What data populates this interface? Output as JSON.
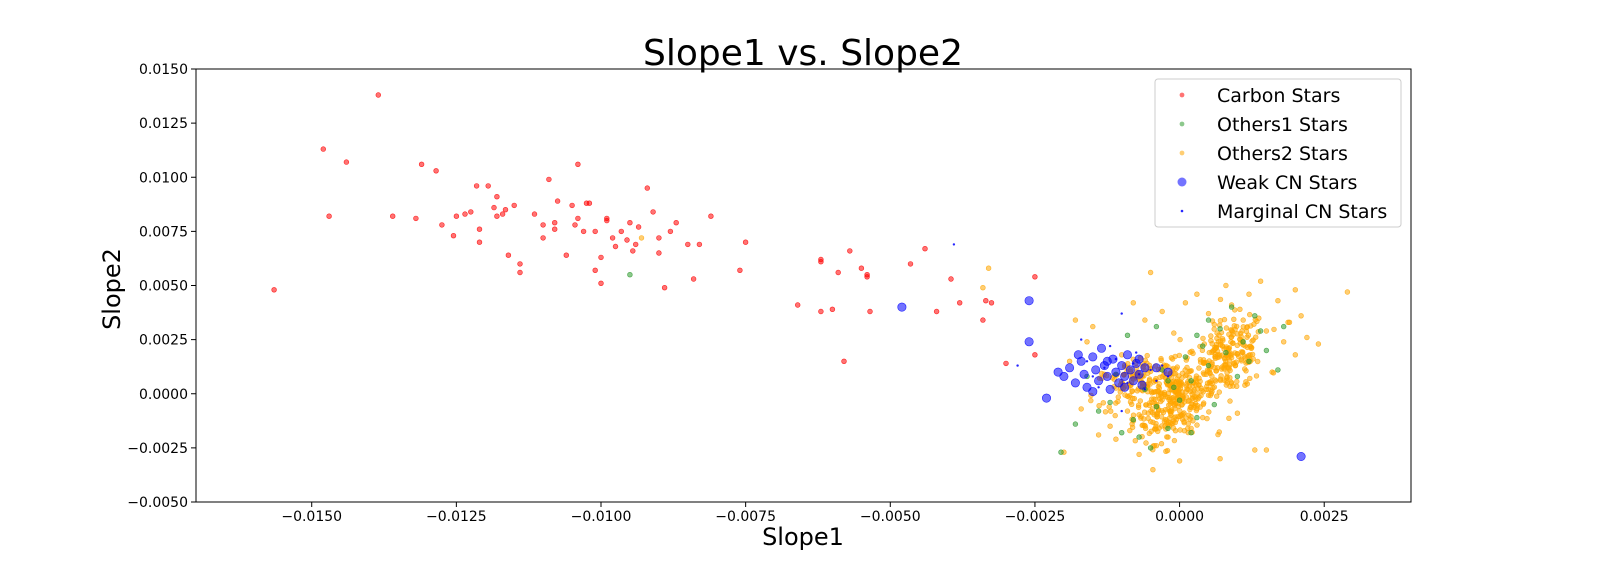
{
  "chart_data": {
    "type": "scatter",
    "title": "Slope1 vs. Slope2",
    "xlabel": "Slope1",
    "ylabel": "Slope2",
    "xlim": [
      -0.017,
      0.004
    ],
    "ylim": [
      -0.005,
      0.015
    ],
    "xticks": [
      -0.015,
      -0.0125,
      -0.01,
      -0.0075,
      -0.005,
      -0.0025,
      0.0,
      0.0025
    ],
    "xtick_labels": [
      "−0.0150",
      "−0.0125",
      "−0.0100",
      "−0.0075",
      "−0.0050",
      "−0.0025",
      "0.0000",
      "0.0025"
    ],
    "yticks": [
      -0.005,
      -0.0025,
      0.0,
      0.0025,
      0.005,
      0.0075,
      0.01,
      0.0125,
      0.015
    ],
    "ytick_labels": [
      "−0.0050",
      "−0.0025",
      "0.0000",
      "0.0025",
      "0.0050",
      "0.0075",
      "0.0100",
      "0.0125",
      "0.0150"
    ],
    "grid": false,
    "legend_position": "top-right",
    "series": [
      {
        "name": "Carbon Stars",
        "color": "#ff0000",
        "marker": "small-circle",
        "points": [
          [
            -0.01565,
            0.0048
          ],
          [
            -0.0148,
            0.0113
          ],
          [
            -0.0147,
            0.0082
          ],
          [
            -0.0144,
            0.0107
          ],
          [
            -0.01385,
            0.0138
          ],
          [
            -0.0136,
            0.0082
          ],
          [
            -0.0132,
            0.0081
          ],
          [
            -0.0131,
            0.0106
          ],
          [
            -0.01285,
            0.0103
          ],
          [
            -0.01275,
            0.0078
          ],
          [
            -0.01255,
            0.0073
          ],
          [
            -0.0125,
            0.0082
          ],
          [
            -0.01235,
            0.0083
          ],
          [
            -0.01225,
            0.0084
          ],
          [
            -0.01215,
            0.0096
          ],
          [
            -0.0121,
            0.0076
          ],
          [
            -0.0121,
            0.007
          ],
          [
            -0.01195,
            0.0096
          ],
          [
            -0.01185,
            0.0086
          ],
          [
            -0.0118,
            0.0091
          ],
          [
            -0.0118,
            0.0082
          ],
          [
            -0.0117,
            0.0083
          ],
          [
            -0.01165,
            0.0085
          ],
          [
            -0.0116,
            0.0064
          ],
          [
            -0.0115,
            0.0087
          ],
          [
            -0.0114,
            0.006
          ],
          [
            -0.0114,
            0.0056
          ],
          [
            -0.01115,
            0.0083
          ],
          [
            -0.011,
            0.0078
          ],
          [
            -0.011,
            0.0072
          ],
          [
            -0.0109,
            0.0099
          ],
          [
            -0.0108,
            0.0076
          ],
          [
            -0.0108,
            0.0079
          ],
          [
            -0.01075,
            0.0089
          ],
          [
            -0.0106,
            0.0064
          ],
          [
            -0.0105,
            0.0087
          ],
          [
            -0.01045,
            0.0078
          ],
          [
            -0.0104,
            0.0106
          ],
          [
            -0.0104,
            0.0081
          ],
          [
            -0.0103,
            0.0075
          ],
          [
            -0.01025,
            0.0088
          ],
          [
            -0.0102,
            0.0088
          ],
          [
            -0.0101,
            0.0057
          ],
          [
            -0.0101,
            0.0075
          ],
          [
            -0.01,
            0.0063
          ],
          [
            -0.01,
            0.0051
          ],
          [
            -0.0099,
            0.008
          ],
          [
            -0.0099,
            0.0081
          ],
          [
            -0.0098,
            0.0072
          ],
          [
            -0.00975,
            0.0068
          ],
          [
            -0.00965,
            0.0075
          ],
          [
            -0.00955,
            0.0071
          ],
          [
            -0.0095,
            0.0079
          ],
          [
            -0.00945,
            0.0066
          ],
          [
            -0.0094,
            0.0069
          ],
          [
            -0.00935,
            0.0077
          ],
          [
            -0.0092,
            0.0095
          ],
          [
            -0.0091,
            0.0084
          ],
          [
            -0.009,
            0.0072
          ],
          [
            -0.009,
            0.0065
          ],
          [
            -0.0089,
            0.0049
          ],
          [
            -0.0088,
            0.0075
          ],
          [
            -0.0087,
            0.0079
          ],
          [
            -0.0085,
            0.0069
          ],
          [
            -0.0084,
            0.0053
          ],
          [
            -0.0083,
            0.0069
          ],
          [
            -0.0081,
            0.0082
          ],
          [
            -0.0076,
            0.0057
          ],
          [
            -0.0075,
            0.007
          ],
          [
            -0.0066,
            0.0041
          ],
          [
            -0.0062,
            0.0062
          ],
          [
            -0.0062,
            0.0061
          ],
          [
            -0.0062,
            0.0038
          ],
          [
            -0.006,
            0.0039
          ],
          [
            -0.0059,
            0.0056
          ],
          [
            -0.0058,
            0.0015
          ],
          [
            -0.0057,
            0.0066
          ],
          [
            -0.0055,
            0.0058
          ],
          [
            -0.0054,
            0.0055
          ],
          [
            -0.0054,
            0.0054
          ],
          [
            -0.00535,
            0.0038
          ],
          [
            -0.00465,
            0.006
          ],
          [
            -0.0044,
            0.0067
          ],
          [
            -0.0042,
            0.0038
          ],
          [
            -0.00395,
            0.0053
          ],
          [
            -0.0038,
            0.0042
          ],
          [
            -0.0034,
            0.0034
          ],
          [
            -0.00335,
            0.0043
          ],
          [
            -0.00325,
            0.0042
          ],
          [
            -0.003,
            0.0014
          ],
          [
            -0.0025,
            0.0054
          ],
          [
            -0.0025,
            0.0018
          ]
        ]
      },
      {
        "name": "Others1 Stars",
        "color": "#2e9a2e",
        "marker": "small-circle",
        "points": [
          [
            -0.0095,
            0.0055
          ],
          [
            -0.00205,
            -0.0027
          ],
          [
            -0.0018,
            -0.0014
          ],
          [
            -0.0016,
            0.0008
          ],
          [
            -0.0014,
            -0.0008
          ],
          [
            -0.0012,
            -0.0004
          ],
          [
            -0.001,
            -0.0018
          ],
          [
            -0.0008,
            -0.0012
          ],
          [
            -0.0007,
            -0.002
          ],
          [
            -0.0006,
            0.0002
          ],
          [
            -0.0005,
            -0.0025
          ],
          [
            -0.0004,
            -0.0006
          ],
          [
            -0.0003,
            0.0011
          ],
          [
            -0.0002,
            -0.0016
          ],
          [
            -0.0001,
            0.0003
          ],
          [
            0.0,
            -0.0003
          ],
          [
            0.0001,
            0.0017
          ],
          [
            0.0002,
            0.0006
          ],
          [
            0.0003,
            -0.0011
          ],
          [
            0.0004,
            0.0022
          ],
          [
            0.0005,
            0.0013
          ],
          [
            0.0006,
            -0.0005
          ],
          [
            0.0007,
            0.003
          ],
          [
            0.0008,
            0.0019
          ],
          [
            0.0009,
            0.004
          ],
          [
            0.001,
            0.0008
          ],
          [
            0.0011,
            0.0024
          ],
          [
            0.0012,
            0.0015
          ],
          [
            0.0013,
            0.0036
          ],
          [
            0.0015,
            0.002
          ],
          [
            0.0017,
            0.0011
          ],
          [
            0.0018,
            0.0031
          ],
          [
            -0.0009,
            0.0027
          ],
          [
            -0.0004,
            0.0031
          ],
          [
            0.0003,
            0.0027
          ],
          [
            0.0005,
            0.0034
          ],
          [
            -0.0002,
            0.0006
          ],
          [
            0.0002,
            -0.0018
          ],
          [
            -0.0011,
            0.0009
          ],
          [
            0.0014,
            0.0029
          ]
        ]
      },
      {
        "name": "Others2 Stars",
        "color": "#ffa500",
        "marker": "small-circle",
        "points": [
          [
            -0.0093,
            0.0072
          ],
          [
            -0.0033,
            0.0058
          ],
          [
            -0.0034,
            0.0049
          ],
          [
            -0.002,
            -0.0027
          ],
          [
            -0.0019,
            0.0015
          ],
          [
            -0.0018,
            0.0034
          ],
          [
            -0.0017,
            -0.0007
          ],
          [
            -0.0016,
            0.0024
          ],
          [
            -0.0015,
            0.0031
          ],
          [
            -0.0014,
            -0.0019
          ],
          [
            -0.0013,
            0.0009
          ],
          [
            -0.0012,
            -0.0015
          ],
          [
            -0.0011,
            -0.0021
          ],
          [
            -0.001,
            0.0018
          ],
          [
            -0.0009,
            -0.0008
          ],
          [
            -0.0008,
            0.0042
          ],
          [
            -0.0007,
            -0.0028
          ],
          [
            -0.0006,
            0.0034
          ],
          [
            -0.0005,
            0.0056
          ],
          [
            -0.0004,
            -0.0024
          ],
          [
            -0.0003,
            0.0038
          ],
          [
            -0.0002,
            -0.002
          ],
          [
            -0.0001,
            0.0028
          ],
          [
            0.0,
            -0.0031
          ],
          [
            0.0001,
            0.0042
          ],
          [
            0.0002,
            -0.0016
          ],
          [
            0.0003,
            0.0046
          ],
          [
            0.0004,
            -0.0011
          ],
          [
            0.0005,
            0.0037
          ],
          [
            0.0006,
            0.0032
          ],
          [
            0.0007,
            -0.003
          ],
          [
            0.0008,
            0.005
          ],
          [
            0.0009,
            0.0041
          ],
          [
            0.001,
            -0.0009
          ],
          [
            0.0011,
            0.0034
          ],
          [
            0.0012,
            0.0046
          ],
          [
            0.0013,
            -0.0026
          ],
          [
            0.0014,
            0.0052
          ],
          [
            0.0015,
            0.0029
          ],
          [
            0.0016,
            0.001
          ],
          [
            0.0017,
            0.0043
          ],
          [
            0.0018,
            0.0024
          ],
          [
            0.0019,
            0.0033
          ],
          [
            0.002,
            0.0048
          ],
          [
            0.0021,
            0.0036
          ],
          [
            0.0022,
            0.0026
          ],
          [
            0.0024,
            0.0023
          ],
          [
            0.0029,
            0.0047
          ],
          [
            0.002,
            0.0018
          ],
          [
            0.0015,
            -0.0026
          ]
        ],
        "dense_regions": [
          {
            "x_range": [
              -0.0008,
              0.0006
            ],
            "y_range": [
              -0.002,
              0.0014
            ],
            "count": 320
          },
          {
            "x_range": [
              0.0002,
              0.0015
            ],
            "y_range": [
              0.0,
              0.0034
            ],
            "count": 220
          },
          {
            "x_range": [
              -0.0015,
              0.0
            ],
            "y_range": [
              -0.0006,
              0.0018
            ],
            "count": 120
          }
        ]
      },
      {
        "name": "Weak CN Stars",
        "color": "#0000ff",
        "marker": "large-circle",
        "points": [
          [
            -0.0048,
            0.004
          ],
          [
            -0.0026,
            0.0043
          ],
          [
            -0.0026,
            0.0024
          ],
          [
            -0.0023,
            -0.0002
          ],
          [
            -0.0021,
            0.001
          ],
          [
            -0.002,
            0.0008
          ],
          [
            -0.0019,
            0.0012
          ],
          [
            -0.0018,
            0.0005
          ],
          [
            -0.0017,
            0.0015
          ],
          [
            -0.00165,
            0.0009
          ],
          [
            -0.0016,
            0.0003
          ],
          [
            -0.0015,
            0.0017
          ],
          [
            -0.00145,
            0.0011
          ],
          [
            -0.0014,
            0.0006
          ],
          [
            -0.00135,
            0.0021
          ],
          [
            -0.0013,
            0.0013
          ],
          [
            -0.00125,
            0.0008
          ],
          [
            -0.0012,
            0.0002
          ],
          [
            -0.00115,
            0.0016
          ],
          [
            -0.0011,
            0.001
          ],
          [
            -0.00105,
            0.0005
          ],
          [
            -0.001,
            0.0013
          ],
          [
            -0.00095,
            0.0008
          ],
          [
            -0.0009,
            0.0018
          ],
          [
            -0.00085,
            0.0011
          ],
          [
            -0.0008,
            0.0006
          ],
          [
            -0.00075,
            0.0014
          ],
          [
            -0.0007,
            0.0009
          ],
          [
            -0.00065,
            0.0004
          ],
          [
            -0.0006,
            0.0012
          ],
          [
            -0.0015,
            0.0001
          ],
          [
            -0.00175,
            0.0018
          ],
          [
            -0.00125,
            0.0015
          ],
          [
            -0.00095,
            0.0003
          ],
          [
            -0.0007,
            0.0016
          ],
          [
            -0.0004,
            0.0012
          ],
          [
            -0.0002,
            0.001
          ],
          [
            0.0021,
            -0.0029
          ]
        ]
      },
      {
        "name": "Marginal CN Stars",
        "color": "#0000ff",
        "marker": "tiny-dot",
        "points": [
          [
            -0.0039,
            0.0069
          ],
          [
            -0.0028,
            0.0013
          ],
          [
            -0.0017,
            0.0025
          ],
          [
            -0.0015,
            0.0008
          ],
          [
            -0.0013,
            0.0012
          ],
          [
            -0.0012,
            0.0022
          ],
          [
            -0.0011,
            0.0016
          ],
          [
            -0.001,
            0.0037
          ],
          [
            -0.0009,
            0.0005
          ],
          [
            -0.0008,
            0.0014
          ],
          [
            -0.0007,
            0.0009
          ],
          [
            -0.0006,
            0.0002
          ],
          [
            -0.0005,
            0.0011
          ],
          [
            -0.0004,
            0.0006
          ],
          [
            -0.0003,
            0.0013
          ],
          [
            -0.0002,
            0.0008
          ],
          [
            -0.0014,
            0.0003
          ],
          [
            -0.0016,
            0.0015
          ],
          [
            -0.001,
            -0.0008
          ],
          [
            -0.00075,
            0.0019
          ]
        ]
      }
    ]
  }
}
